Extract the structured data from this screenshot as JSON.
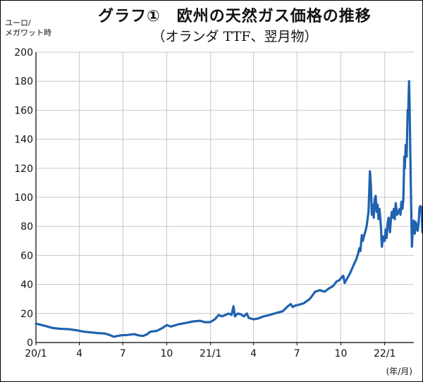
{
  "title": "グラフ①　欧州の天然ガス価格の推移",
  "subtitle": "（オランダ TTF、翌月物）",
  "unit_line1": "ユーロ/",
  "unit_line2": "メガワット時",
  "x_unit": "(年/月)",
  "colors": {
    "line": "#1f62b0",
    "grid": "#c8c8c8",
    "axis": "#000000"
  },
  "chart_data": {
    "type": "line",
    "title": "グラフ①　欧州の天然ガス価格の推移",
    "subtitle": "（オランダ TTF、翌月物）",
    "ylabel": "ユーロ/メガワット時",
    "xlabel": "(年/月)",
    "ylim": [
      0,
      200
    ],
    "yticks": [
      0,
      20,
      40,
      60,
      80,
      100,
      120,
      140,
      160,
      180,
      200
    ],
    "xticks": [
      {
        "x": "2020-01",
        "label": "20/1"
      },
      {
        "x": "2020-04",
        "label": "4"
      },
      {
        "x": "2020-07",
        "label": "7"
      },
      {
        "x": "2020-10",
        "label": "10"
      },
      {
        "x": "2021-01",
        "label": "21/1"
      },
      {
        "x": "2021-04",
        "label": "4"
      },
      {
        "x": "2021-07",
        "label": "7"
      },
      {
        "x": "2021-10",
        "label": "10"
      },
      {
        "x": "2022-01",
        "label": "22/1"
      }
    ],
    "xlim": [
      "2020-01-01",
      "2022-03-03"
    ],
    "grid": true,
    "series": [
      {
        "points": [
          [
            "2020-01-01",
            13
          ],
          [
            "2020-01-20",
            11.5
          ],
          [
            "2020-02-05",
            10
          ],
          [
            "2020-02-20",
            9.5
          ],
          [
            "2020-03-10",
            9.2
          ],
          [
            "2020-03-25",
            8.5
          ],
          [
            "2020-04-10",
            7.5
          ],
          [
            "2020-04-25",
            7
          ],
          [
            "2020-05-10",
            6.5
          ],
          [
            "2020-05-25",
            6.2
          ],
          [
            "2020-06-05",
            5
          ],
          [
            "2020-06-12",
            4
          ],
          [
            "2020-06-20",
            4.5
          ],
          [
            "2020-06-28",
            5
          ],
          [
            "2020-07-10",
            5.2
          ],
          [
            "2020-07-25",
            5.8
          ],
          [
            "2020-08-02",
            5
          ],
          [
            "2020-08-12",
            4.5
          ],
          [
            "2020-08-20",
            5.5
          ],
          [
            "2020-08-28",
            7.5
          ],
          [
            "2020-09-10",
            8
          ],
          [
            "2020-09-22",
            10
          ],
          [
            "2020-10-01",
            12
          ],
          [
            "2020-10-10",
            11
          ],
          [
            "2020-10-25",
            12.5
          ],
          [
            "2020-11-10",
            13.5
          ],
          [
            "2020-11-25",
            14.5
          ],
          [
            "2020-12-10",
            15
          ],
          [
            "2020-12-20",
            14
          ],
          [
            "2020-12-31",
            14
          ],
          [
            "2021-01-10",
            16
          ],
          [
            "2021-01-18",
            19
          ],
          [
            "2021-01-25",
            18
          ],
          [
            "2021-02-01",
            19
          ],
          [
            "2021-02-08",
            20
          ],
          [
            "2021-02-14",
            19
          ],
          [
            "2021-02-18",
            25
          ],
          [
            "2021-02-21",
            18
          ],
          [
            "2021-02-27",
            20
          ],
          [
            "2021-03-05",
            19.5
          ],
          [
            "2021-03-12",
            18
          ],
          [
            "2021-03-18",
            20
          ],
          [
            "2021-03-22",
            17
          ],
          [
            "2021-04-01",
            16
          ],
          [
            "2021-04-10",
            16.5
          ],
          [
            "2021-04-22",
            18
          ],
          [
            "2021-05-05",
            19
          ],
          [
            "2021-05-20",
            20.5
          ],
          [
            "2021-06-01",
            21.5
          ],
          [
            "2021-06-12",
            25
          ],
          [
            "2021-06-18",
            26.5
          ],
          [
            "2021-06-22",
            24.5
          ],
          [
            "2021-06-28",
            25.5
          ],
          [
            "2021-07-05",
            26
          ],
          [
            "2021-07-15",
            27
          ],
          [
            "2021-07-28",
            30
          ],
          [
            "2021-08-08",
            35
          ],
          [
            "2021-08-18",
            36
          ],
          [
            "2021-08-28",
            35
          ],
          [
            "2021-09-05",
            37
          ],
          [
            "2021-09-15",
            39
          ],
          [
            "2021-09-22",
            42
          ],
          [
            "2021-09-28",
            43
          ],
          [
            "2021-10-03",
            45
          ],
          [
            "2021-10-06",
            46
          ],
          [
            "2021-10-09",
            41
          ],
          [
            "2021-10-14",
            44
          ],
          [
            "2021-10-20",
            47.5
          ],
          [
            "2021-10-26",
            52
          ],
          [
            "2021-10-30",
            55
          ],
          [
            "2021-11-02",
            57
          ],
          [
            "2021-11-06",
            61
          ],
          [
            "2021-11-09",
            65
          ],
          [
            "2021-11-11",
            63
          ],
          [
            "2021-11-14",
            74
          ],
          [
            "2021-11-16",
            70
          ],
          [
            "2021-11-19",
            74
          ],
          [
            "2021-11-21",
            76
          ],
          [
            "2021-11-24",
            80
          ],
          [
            "2021-11-26",
            85
          ],
          [
            "2021-11-28",
            90
          ],
          [
            "2021-12-01",
            118
          ],
          [
            "2021-12-03",
            108
          ],
          [
            "2021-12-05",
            88
          ],
          [
            "2021-12-07",
            95
          ],
          [
            "2021-12-09",
            86
          ],
          [
            "2021-12-11",
            99
          ],
          [
            "2021-12-13",
            101
          ],
          [
            "2021-12-15",
            90
          ],
          [
            "2021-12-17",
            95
          ],
          [
            "2021-12-19",
            85
          ],
          [
            "2021-12-21",
            92
          ],
          [
            "2021-12-24",
            80
          ],
          [
            "2021-12-26",
            66
          ],
          [
            "2021-12-29",
            73
          ],
          [
            "2022-01-01",
            70
          ],
          [
            "2022-01-03",
            78
          ],
          [
            "2022-01-05",
            72
          ],
          [
            "2022-01-07",
            82
          ],
          [
            "2022-01-09",
            86
          ],
          [
            "2022-01-12",
            76
          ],
          [
            "2022-01-14",
            85
          ],
          [
            "2022-01-16",
            90
          ],
          [
            "2022-01-18",
            86
          ],
          [
            "2022-01-20",
            92
          ],
          [
            "2022-01-22",
            85
          ],
          [
            "2022-01-24",
            96
          ],
          [
            "2022-01-27",
            88
          ],
          [
            "2022-01-30",
            90
          ],
          [
            "2022-02-01",
            92
          ],
          [
            "2022-02-03",
            88
          ],
          [
            "2022-02-05",
            97
          ],
          [
            "2022-02-07",
            92
          ],
          [
            "2022-02-09",
            98
          ],
          [
            "2022-02-11",
            128
          ],
          [
            "2022-02-12",
            120
          ],
          [
            "2022-02-14",
            136
          ],
          [
            "2022-02-16",
            128
          ],
          [
            "2022-02-18",
            160
          ],
          [
            "2022-02-19",
            155
          ],
          [
            "2022-02-21",
            180
          ],
          [
            "2022-02-22",
            165
          ],
          [
            "2022-02-24",
            122
          ],
          [
            "2022-02-25",
            102
          ],
          [
            "2022-02-27",
            66
          ],
          [
            "2022-03-01",
            80
          ],
          [
            "2022-03-03",
            84
          ],
          [
            "2022-03-05",
            75
          ],
          [
            "2022-03-07",
            83
          ],
          [
            "2022-03-09",
            80
          ],
          [
            "2022-03-11",
            77
          ],
          [
            "2022-03-13",
            82
          ],
          [
            "2022-03-15",
            93
          ],
          [
            "2022-03-17",
            94
          ],
          [
            "2022-03-19",
            93
          ],
          [
            "2022-03-21",
            76
          ],
          [
            "2022-03-23",
            75
          ],
          [
            "2022-03-25",
            78
          ]
        ]
      }
    ]
  }
}
